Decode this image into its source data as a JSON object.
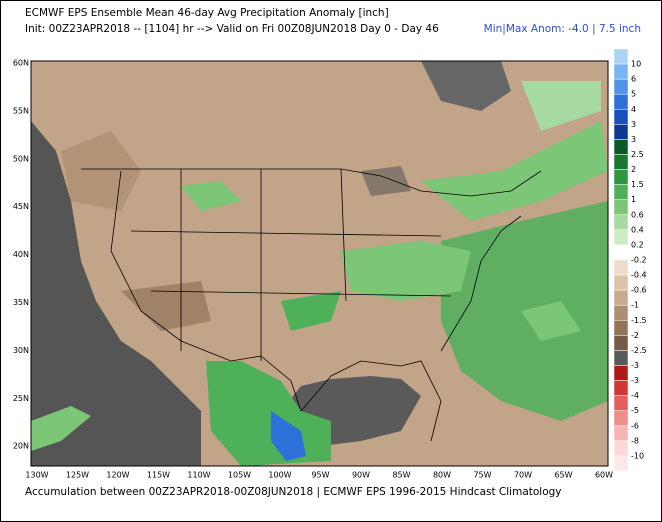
{
  "header": {
    "title": "ECMWF EPS Ensemble Mean 46-day Avg Precipitation Anomaly [inch]",
    "init": "Init: 00Z23APR2018 -- [1104] hr --> Valid on Fri 00Z08JUN2018  Day 0 - Day 46",
    "minmax": "Min|Max Anom: -4.0 | 7.5 inch"
  },
  "lat_labels": [
    "60N",
    "55N",
    "50N",
    "45N",
    "40N",
    "35N",
    "30N",
    "25N",
    "20N"
  ],
  "lon_labels": [
    "130W",
    "125W",
    "120W",
    "115W",
    "110W",
    "105W",
    "100W",
    "95W",
    "90W",
    "85W",
    "80W",
    "75W",
    "70W",
    "65W",
    "60W"
  ],
  "colorbar": {
    "labels": [
      "10",
      "6",
      "5",
      "4",
      "3",
      "3",
      "2.5",
      "2",
      "1.5",
      "1",
      "0.6",
      "0.4",
      "0.2",
      "-0.2",
      "-0.4",
      "-0.6",
      "-1",
      "-1.5",
      "-2",
      "-2.5",
      "-3",
      "-3",
      "-4",
      "-5",
      "-6",
      "-8",
      "-10"
    ],
    "colors": [
      "#a8d4f8",
      "#78b4f0",
      "#5094e8",
      "#2c70d8",
      "#1850c0",
      "#0c3a90",
      "#0a5a2a",
      "#17782f",
      "#2c9640",
      "#4fb05a",
      "#7cc678",
      "#a6daa0",
      "#cdecc6",
      "#ffffff",
      "#ecdccc",
      "#dcc4ac",
      "#c8aa8e",
      "#ae8e72",
      "#927458",
      "#745c48",
      "#5a5a5a",
      "#b01818",
      "#d03636",
      "#e46060",
      "#f08c8c",
      "#f8b4b4",
      "#fcd8d8",
      "#fde8e8"
    ]
  },
  "footer": "Accumulation between 00Z23APR2018-00Z08JUN2018 | ECMWF EPS 1996-2015 Hindcast Climatology"
}
